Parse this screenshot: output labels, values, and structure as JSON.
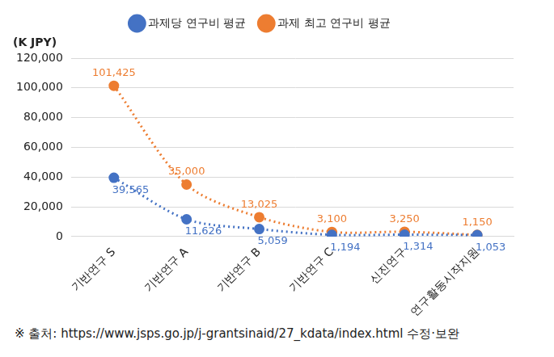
{
  "chart_data": {
    "type": "line",
    "ylabel": "(K JPY)",
    "categories": [
      "기반연구 S",
      "기반연구 A",
      "기반연구 B",
      "기반연구 C",
      "신진연구",
      "연구활동시작지원"
    ],
    "series": [
      {
        "name": "과제당 연구비 평균",
        "color": "#4472c4",
        "marker": "circle",
        "line_style": "dotted",
        "values": [
          39565,
          11626,
          5059,
          1194,
          1314,
          1053
        ],
        "value_labels": [
          "39,565",
          "11,626",
          "5,059",
          "1,194",
          "1,314",
          "1,053"
        ]
      },
      {
        "name": "과제 최고 연구비 평균",
        "color": "#ed7d31",
        "marker": "circle",
        "line_style": "dotted",
        "values": [
          101425,
          35000,
          13025,
          3100,
          3250,
          1150
        ],
        "value_labels": [
          "101,425",
          "35,000",
          "13,025",
          "3,100",
          "3,250",
          "1,150"
        ]
      }
    ],
    "ylim": [
      0,
      120000
    ],
    "yticks": [
      0,
      {
        "value": 20000,
        "label": "20,000"
      },
      {
        "value": 40000,
        "label": "40,000"
      },
      {
        "value": 60000,
        "label": "60,000"
      },
      {
        "value": 80000,
        "label": "80,000"
      },
      {
        "value": 100000,
        "label": "100,000"
      },
      {
        "value": 120000,
        "label": "120,000"
      }
    ],
    "grid": true,
    "legend": "top",
    "data_labels": true,
    "source": "※ 출처: https://www.jsps.go.jp/j-grantsinaid/27_kdata/index.html 수정·보완"
  }
}
